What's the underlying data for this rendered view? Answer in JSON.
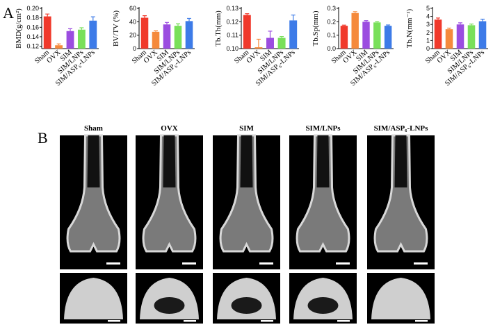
{
  "chart_data": [
    {
      "type": "bar",
      "y_label": "BMD(g/cm²)",
      "categories": [
        "Sham",
        "OVX",
        "SIM",
        "SIM/LNPs",
        "SIM/ASP₆-LNPs"
      ],
      "values": [
        0.183,
        0.122,
        0.152,
        0.155,
        0.174
      ],
      "errors": [
        0.005,
        0.003,
        0.005,
        0.004,
        0.008
      ],
      "colors": [
        "#f0392b",
        "#f58a3c",
        "#9b4de0",
        "#79e05a",
        "#3d7be8"
      ],
      "ylim": [
        0.115,
        0.2
      ],
      "yticks": [
        0.12,
        0.14,
        0.16,
        0.18,
        {
          "value": 0.2,
          "label": "0.20"
        }
      ]
    },
    {
      "type": "bar",
      "y_label": "BV/TV (%)",
      "categories": [
        "Sham",
        "OVX",
        "SIM",
        "SIM/LNPs",
        "SIM/ASP₆-LNPs"
      ],
      "values": [
        46,
        25,
        36,
        34,
        41
      ],
      "errors": [
        3,
        1.5,
        3,
        3,
        4
      ],
      "colors": [
        "#f0392b",
        "#f58a3c",
        "#9b4de0",
        "#79e05a",
        "#3d7be8"
      ],
      "ylim": [
        0,
        60
      ],
      "yticks": [
        0,
        20,
        40,
        60
      ]
    },
    {
      "type": "bar",
      "y_label": "Tb.Th(mm)",
      "categories": [
        "Sham",
        "OVX",
        "SIM",
        "SIM/LNPs",
        "SIM/ASP₆-LNPs"
      ],
      "values": [
        0.125,
        0.101,
        0.108,
        0.108,
        0.121
      ],
      "errors": [
        0.001,
        0.006,
        0.005,
        0.001,
        0.004
      ],
      "colors": [
        "#f0392b",
        "#f58a3c",
        "#9b4de0",
        "#79e05a",
        "#3d7be8"
      ],
      "ylim": [
        0.1,
        0.13
      ],
      "yticks": [
        {
          "value": 0.1,
          "label": "0.10"
        },
        0.11,
        0.12,
        0.13
      ]
    },
    {
      "type": "bar",
      "y_label": "Tb.Sp(mm)",
      "categories": [
        "Sham",
        "OVX",
        "SIM",
        "SIM/LNPs",
        "SIM/ASP₆-LNPs"
      ],
      "values": [
        0.17,
        0.265,
        0.2,
        0.195,
        0.17
      ],
      "errors": [
        0.005,
        0.01,
        0.008,
        0.006,
        0.006
      ],
      "colors": [
        "#f0392b",
        "#f58a3c",
        "#9b4de0",
        "#79e05a",
        "#3d7be8"
      ],
      "ylim": [
        0,
        0.3
      ],
      "yticks": [
        {
          "value": 0,
          "label": "0.0"
        },
        0.1,
        0.2,
        0.3
      ]
    },
    {
      "type": "bar",
      "y_label": "Tb.N(mm⁻¹)",
      "categories": [
        "Sham",
        "OVX",
        "SIM",
        "SIM/LNPs",
        "SIM/ASP₆-LNPs"
      ],
      "values": [
        3.6,
        2.4,
        3.0,
        2.9,
        3.4
      ],
      "errors": [
        0.2,
        0.15,
        0.2,
        0.15,
        0.25
      ],
      "colors": [
        "#f0392b",
        "#f58a3c",
        "#9b4de0",
        "#79e05a",
        "#3d7be8"
      ],
      "ylim": [
        0,
        5
      ],
      "yticks": [
        0,
        1,
        2,
        3,
        4,
        5
      ]
    }
  ],
  "panel_a": "A",
  "panel_b": {
    "label": "B",
    "groups": [
      "Sham",
      "OVX",
      "SIM",
      "SIM/LNPs",
      "SIM/ASP₆-LNPs"
    ]
  }
}
